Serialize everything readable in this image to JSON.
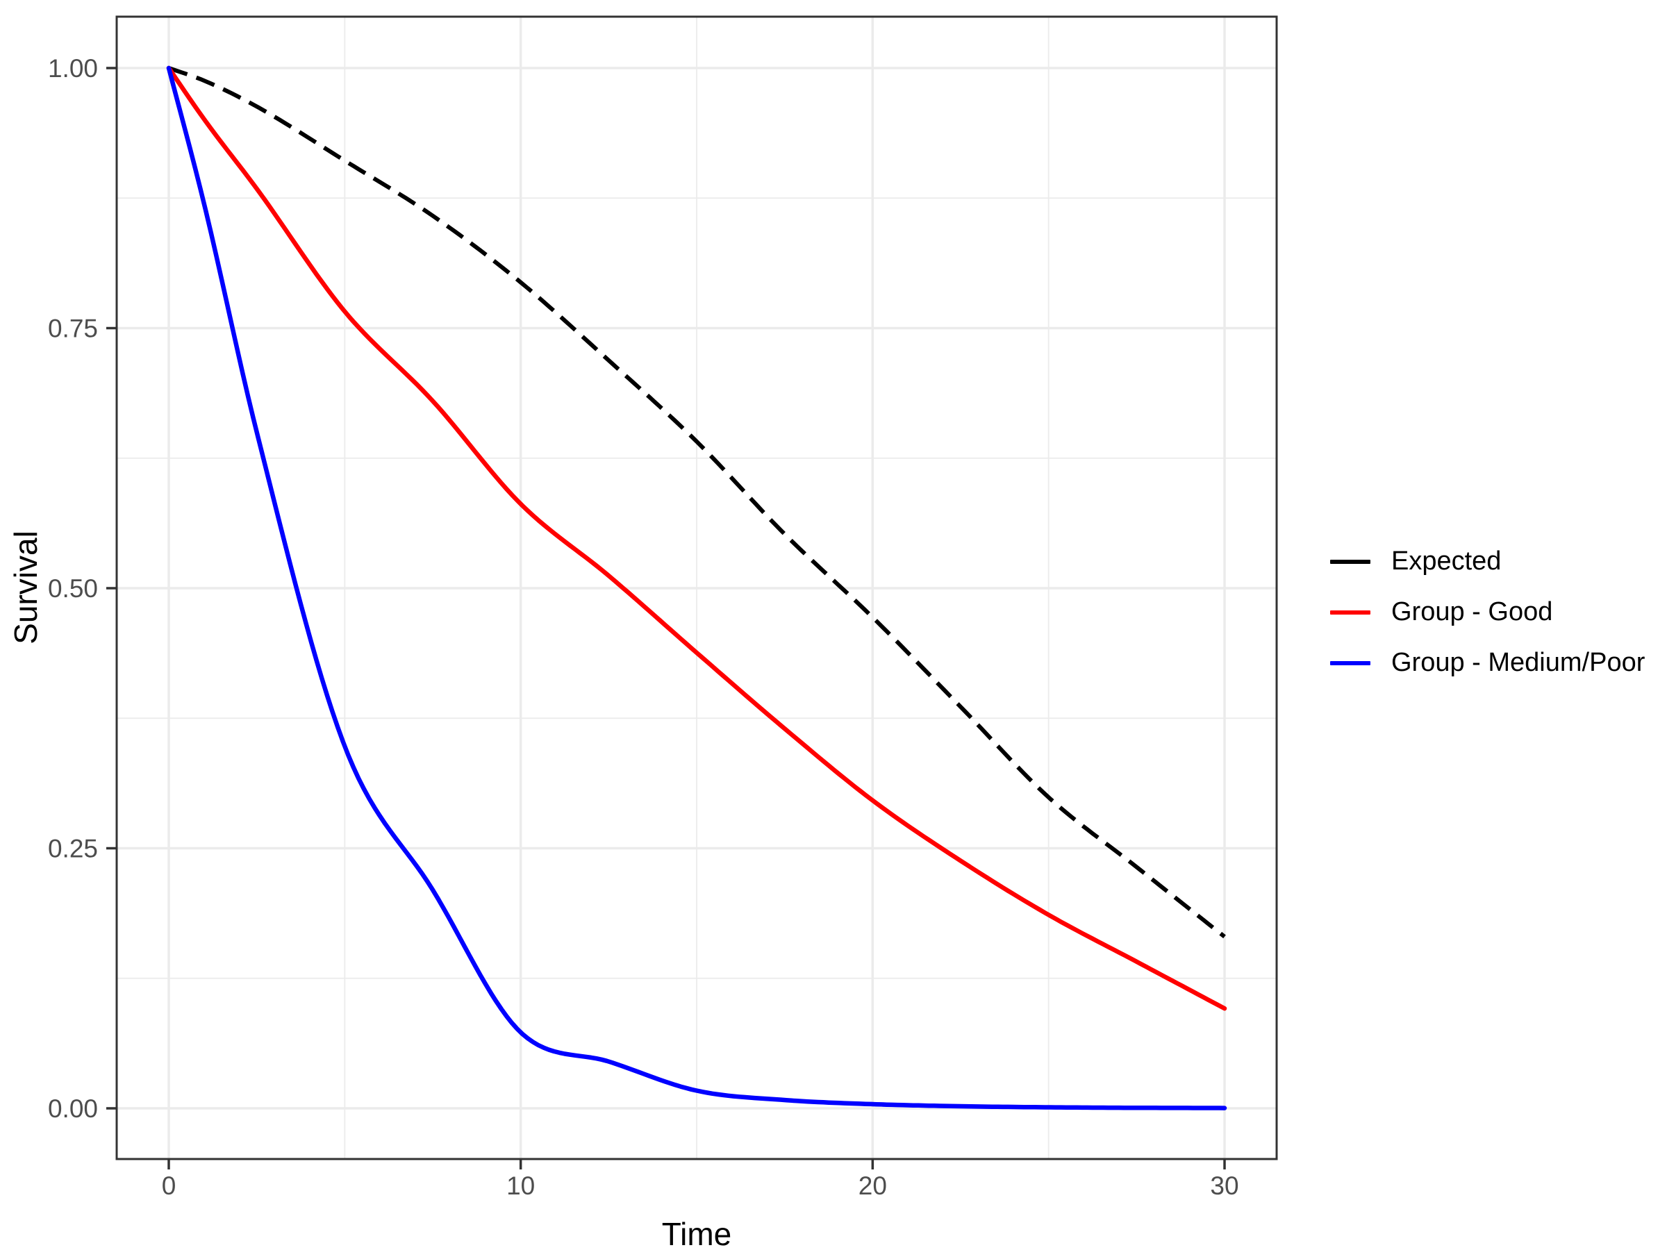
{
  "figure": {
    "background": "#FFFFFF",
    "panel_border_color": "#333333",
    "gridline_color": "#EBEBEB",
    "tick_color": "#333333",
    "axis_text_color": "#4D4D4D"
  },
  "axes": {
    "x": {
      "title": "Time",
      "tick_labels": [
        "0",
        "10",
        "20",
        "30"
      ],
      "tick_values": [
        0,
        10,
        20,
        30
      ],
      "minor_values": [
        5,
        15,
        25
      ]
    },
    "y": {
      "title": "Survival",
      "tick_labels": [
        "1.00",
        "0.75",
        "0.50",
        "0.25",
        "0.00"
      ],
      "tick_values": [
        1.0,
        0.75,
        0.5,
        0.25,
        0.0
      ],
      "minor_values": [
        0.875,
        0.625,
        0.375,
        0.125
      ]
    }
  },
  "legend": {
    "position": "right",
    "items": [
      {
        "label": "Expected",
        "color": "#000000"
      },
      {
        "label": "Group - Good",
        "color": "#FF0000"
      },
      {
        "label": "Group - Medium/Poor",
        "color": "#0000FF"
      }
    ]
  },
  "chart_data": {
    "type": "line",
    "title": "",
    "xlabel": "Time",
    "ylabel": "Survival",
    "xlim": [
      0,
      30
    ],
    "ylim": [
      0,
      1
    ],
    "grid": true,
    "legend_position": "right",
    "x_samples": [
      0,
      1,
      2.5,
      5,
      7.5,
      10,
      12.5,
      15,
      17.5,
      20,
      22.5,
      25,
      27.5,
      30
    ],
    "series": [
      {
        "name": "Expected",
        "color": "#000000",
        "linetype": "dashed",
        "values": [
          1.0,
          0.988,
          0.963,
          0.911,
          0.858,
          0.794,
          0.719,
          0.641,
          0.552,
          0.472,
          0.386,
          0.299,
          0.232,
          0.165
        ]
      },
      {
        "name": "Group - Good",
        "color": "#FF0000",
        "linetype": "solid",
        "values": [
          1.0,
          0.951,
          0.884,
          0.766,
          0.68,
          0.581,
          0.512,
          0.438,
          0.365,
          0.296,
          0.238,
          0.186,
          0.141,
          0.096
        ]
      },
      {
        "name": "Group - Medium/Poor",
        "color": "#0000FF",
        "linetype": "solid",
        "values": [
          1.0,
          0.87,
          0.65,
          0.348,
          0.21,
          0.073,
          0.045,
          0.017,
          0.008,
          0.004,
          0.002,
          0.001,
          0.0005,
          0.0003
        ]
      }
    ]
  }
}
